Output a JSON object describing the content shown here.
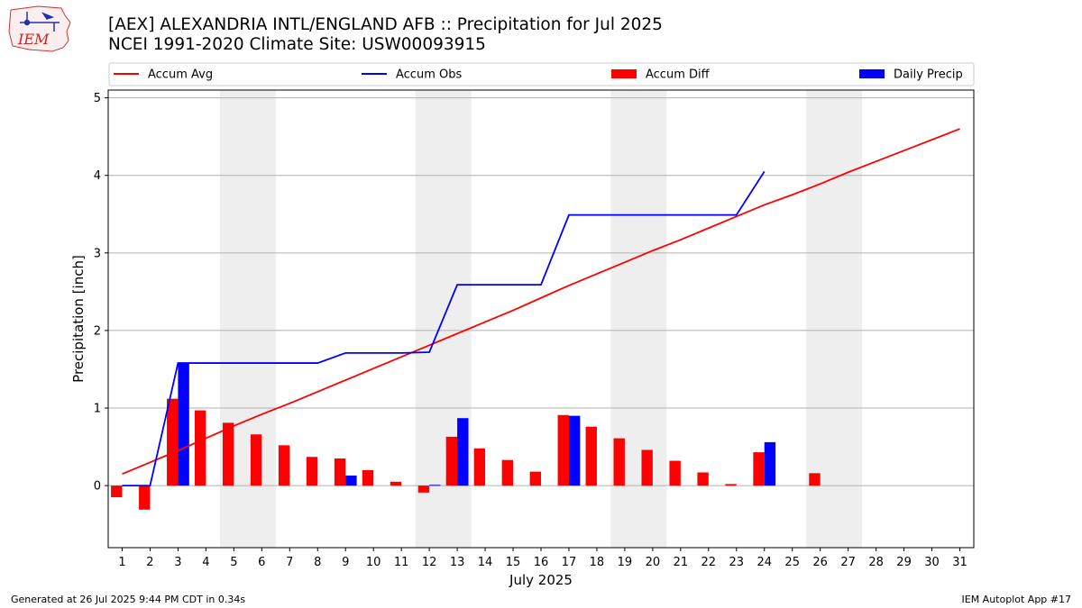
{
  "header": {
    "title_line1": "[AEX] ALEXANDRIA INTL/ENGLAND AFB :: Precipitation for Jul 2025",
    "title_line2": "NCEI 1991-2020 Climate Site: USW00093915",
    "logo_text": "IEM"
  },
  "footer": {
    "generated": "Generated at 26 Jul 2025 9:44 PM CDT in 0.34s",
    "app": "IEM Autoplot App #17"
  },
  "colors": {
    "accum_avg": "#ff0000",
    "accum_obs": "#0000ff",
    "accum_diff": "#ff0000",
    "daily_precip": "#0000ff",
    "weekend_shade": "#eeeeee",
    "grid": "#b0b0b0"
  },
  "chart_data": {
    "type": "bar",
    "title": "[AEX] ALEXANDRIA INTL/ENGLAND AFB :: Precipitation for Jul 2025",
    "subtitle": "NCEI 1991-2020 Climate Site: USW00093915",
    "xlabel": "July 2025",
    "ylabel": "Precipitation [inch]",
    "xlim": [
      0.5,
      31.5
    ],
    "ylim": [
      -0.8,
      5.1
    ],
    "yticks": [
      0,
      1,
      2,
      3,
      4,
      5
    ],
    "xticks": [
      1,
      2,
      3,
      4,
      5,
      6,
      7,
      8,
      9,
      10,
      11,
      12,
      13,
      14,
      15,
      16,
      17,
      18,
      19,
      20,
      21,
      22,
      23,
      24,
      25,
      26,
      27,
      28,
      29,
      30,
      31
    ],
    "grid": "y",
    "legend": {
      "placement": "top",
      "entries": [
        "Accum Avg",
        "Accum Obs",
        "Accum Diff",
        "Daily Precip"
      ]
    },
    "shaded_days": [
      [
        5,
        6
      ],
      [
        12,
        13
      ],
      [
        19,
        20
      ],
      [
        26,
        27
      ]
    ],
    "series": [
      {
        "name": "Accum Avg",
        "kind": "line",
        "x": [
          1,
          2,
          3,
          4,
          5,
          6,
          7,
          8,
          9,
          10,
          11,
          12,
          13,
          14,
          15,
          16,
          17,
          18,
          19,
          20,
          21,
          22,
          23,
          24,
          25,
          26,
          27,
          28,
          29,
          30,
          31
        ],
        "values": [
          0.15,
          0.3,
          0.45,
          0.61,
          0.77,
          0.92,
          1.06,
          1.21,
          1.36,
          1.51,
          1.66,
          1.81,
          1.96,
          2.11,
          2.26,
          2.42,
          2.58,
          2.73,
          2.88,
          3.03,
          3.17,
          3.32,
          3.47,
          3.62,
          3.75,
          3.89,
          4.04,
          4.18,
          4.32,
          4.46,
          4.6
        ]
      },
      {
        "name": "Accum Obs",
        "kind": "line",
        "x": [
          1,
          2,
          3,
          4,
          5,
          6,
          7,
          8,
          9,
          10,
          11,
          12,
          13,
          14,
          15,
          16,
          17,
          18,
          19,
          20,
          21,
          22,
          23,
          24
        ],
        "values": [
          0.0,
          0.0,
          1.58,
          1.58,
          1.58,
          1.58,
          1.58,
          1.58,
          1.71,
          1.71,
          1.71,
          1.72,
          2.59,
          2.59,
          2.59,
          2.59,
          3.49,
          3.49,
          3.49,
          3.49,
          3.49,
          3.49,
          3.49,
          4.05
        ]
      },
      {
        "name": "Accum Diff",
        "kind": "bar",
        "x": [
          1,
          2,
          3,
          4,
          5,
          6,
          7,
          8,
          9,
          10,
          11,
          12,
          13,
          14,
          15,
          16,
          17,
          18,
          19,
          20,
          21,
          22,
          23,
          24,
          26
        ],
        "values": [
          -0.15,
          -0.31,
          1.12,
          0.97,
          0.81,
          0.66,
          0.52,
          0.37,
          0.35,
          0.2,
          0.05,
          -0.09,
          0.63,
          0.48,
          0.33,
          0.18,
          0.91,
          0.76,
          0.61,
          0.46,
          0.32,
          0.17,
          0.02,
          0.43,
          0.16
        ]
      },
      {
        "name": "Daily Precip",
        "kind": "bar",
        "x": [
          3,
          9,
          12,
          13,
          17,
          24
        ],
        "values": [
          1.58,
          0.13,
          0.01,
          0.87,
          0.9,
          0.56
        ]
      }
    ]
  }
}
